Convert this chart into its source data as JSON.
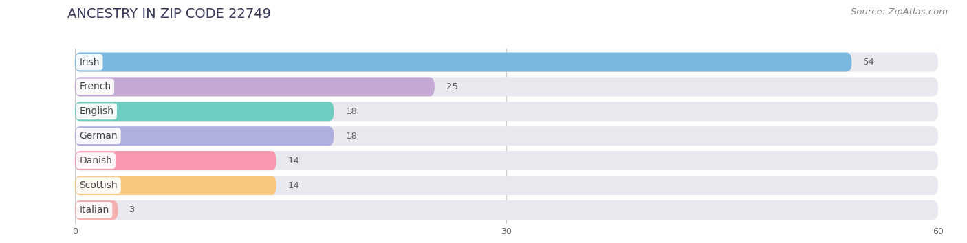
{
  "title": "ANCESTRY IN ZIP CODE 22749",
  "source": "Source: ZipAtlas.com",
  "categories": [
    "Irish",
    "French",
    "English",
    "German",
    "Danish",
    "Scottish",
    "Italian"
  ],
  "values": [
    54,
    25,
    18,
    18,
    14,
    14,
    3
  ],
  "bar_colors": [
    "#7ab8e0",
    "#c4a8d4",
    "#6eccc0",
    "#b0b0e0",
    "#f898b0",
    "#f8c880",
    "#f4b0b0"
  ],
  "xlim": [
    -1,
    60
  ],
  "xticks": [
    0,
    30,
    60
  ],
  "background_color": "#ffffff",
  "row_bg_color": "#e8e8ee",
  "title_fontsize": 14,
  "source_fontsize": 9.5,
  "label_fontsize": 10,
  "value_fontsize": 9.5
}
